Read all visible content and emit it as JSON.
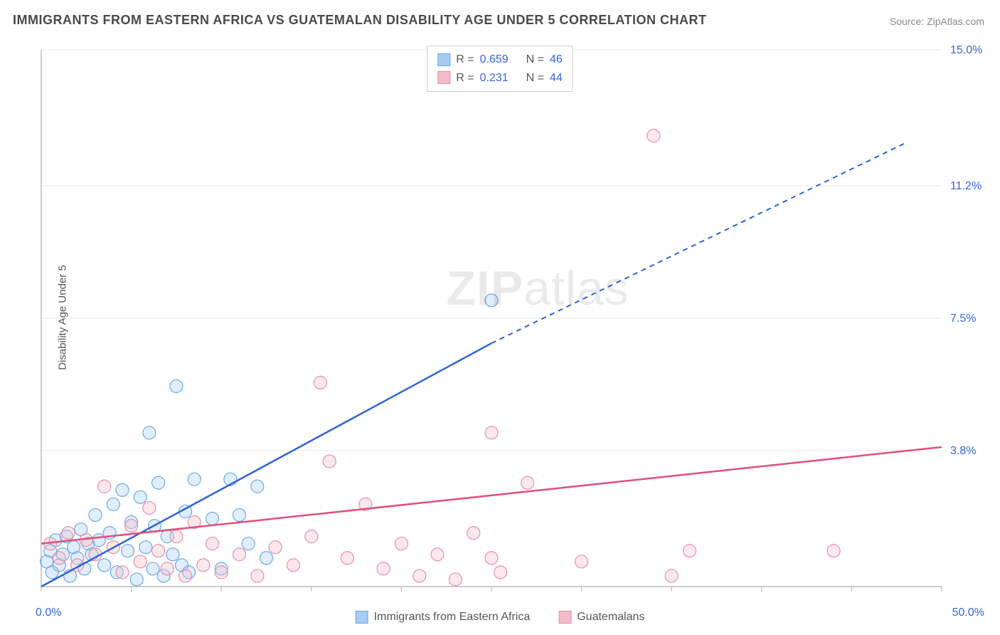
{
  "title": "IMMIGRANTS FROM EASTERN AFRICA VS GUATEMALAN DISABILITY AGE UNDER 5 CORRELATION CHART",
  "source_prefix": "Source: ",
  "source_name": "ZipAtlas.com",
  "y_axis_label": "Disability Age Under 5",
  "watermark_bold": "ZIP",
  "watermark_rest": "atlas",
  "chart": {
    "type": "scatter",
    "xlim": [
      0,
      50
    ],
    "ylim": [
      0,
      15
    ],
    "x_start_label": "0.0%",
    "x_end_label": "50.0%",
    "y_tick_values": [
      3.8,
      7.5,
      11.2,
      15.0
    ],
    "y_tick_labels": [
      "3.8%",
      "7.5%",
      "11.2%",
      "15.0%"
    ],
    "x_tick_values": [
      0,
      5,
      10,
      15,
      20,
      25,
      30,
      35,
      40,
      45,
      50
    ],
    "background_color": "#ffffff",
    "grid_color": "#e8e8e8",
    "axis_color": "#bbbbbb",
    "marker_radius": 9,
    "marker_stroke_width": 1.2,
    "marker_fill_opacity": 0.35,
    "series": [
      {
        "key": "eastern_africa",
        "label": "Immigrants from Eastern Africa",
        "color_stroke": "#6fa8e8",
        "color_fill": "#a7cbf2",
        "trend_color": "#2f63d6",
        "trend_start": [
          0,
          0.0
        ],
        "trend_solid_end": [
          25,
          6.8
        ],
        "trend_dash_end": [
          48,
          12.4
        ],
        "R_label": "R =",
        "R": "0.659",
        "N_label": "N =",
        "N": "46",
        "points": [
          [
            0.3,
            0.7
          ],
          [
            0.5,
            1.0
          ],
          [
            0.6,
            0.4
          ],
          [
            0.8,
            1.3
          ],
          [
            1.0,
            0.6
          ],
          [
            1.2,
            0.9
          ],
          [
            1.4,
            1.4
          ],
          [
            1.6,
            0.3
          ],
          [
            1.8,
            1.1
          ],
          [
            2.0,
            0.8
          ],
          [
            2.2,
            1.6
          ],
          [
            2.4,
            0.5
          ],
          [
            2.6,
            1.2
          ],
          [
            2.8,
            0.9
          ],
          [
            3.0,
            2.0
          ],
          [
            3.2,
            1.3
          ],
          [
            3.5,
            0.6
          ],
          [
            3.8,
            1.5
          ],
          [
            4.0,
            2.3
          ],
          [
            4.2,
            0.4
          ],
          [
            4.5,
            2.7
          ],
          [
            4.8,
            1.0
          ],
          [
            5.0,
            1.8
          ],
          [
            5.3,
            0.2
          ],
          [
            5.5,
            2.5
          ],
          [
            5.8,
            1.1
          ],
          [
            6.0,
            4.3
          ],
          [
            6.2,
            0.5
          ],
          [
            6.5,
            2.9
          ],
          [
            6.8,
            0.3
          ],
          [
            7.0,
            1.4
          ],
          [
            7.3,
            0.9
          ],
          [
            7.5,
            5.6
          ],
          [
            7.8,
            0.6
          ],
          [
            8.0,
            2.1
          ],
          [
            8.2,
            0.4
          ],
          [
            8.5,
            3.0
          ],
          [
            9.5,
            1.9
          ],
          [
            10.0,
            0.5
          ],
          [
            10.5,
            3.0
          ],
          [
            11.0,
            2.0
          ],
          [
            11.5,
            1.2
          ],
          [
            12.0,
            2.8
          ],
          [
            12.5,
            0.8
          ],
          [
            25.0,
            8.0
          ],
          [
            6.3,
            1.7
          ]
        ]
      },
      {
        "key": "guatemalans",
        "label": "Guatemalans",
        "color_stroke": "#e88fa8",
        "color_fill": "#f3bcc9",
        "trend_color": "#e04f7a",
        "trend_start": [
          0,
          1.2
        ],
        "trend_solid_end": [
          50,
          3.9
        ],
        "trend_dash_end": null,
        "R_label": "R =",
        "R": "0.231",
        "N_label": "N =",
        "N": "44",
        "points": [
          [
            0.5,
            1.2
          ],
          [
            1.0,
            0.8
          ],
          [
            1.5,
            1.5
          ],
          [
            2.0,
            0.6
          ],
          [
            2.5,
            1.3
          ],
          [
            3.0,
            0.9
          ],
          [
            3.5,
            2.8
          ],
          [
            4.0,
            1.1
          ],
          [
            4.5,
            0.4
          ],
          [
            5.0,
            1.7
          ],
          [
            5.5,
            0.7
          ],
          [
            6.0,
            2.2
          ],
          [
            6.5,
            1.0
          ],
          [
            7.0,
            0.5
          ],
          [
            7.5,
            1.4
          ],
          [
            8.0,
            0.3
          ],
          [
            8.5,
            1.8
          ],
          [
            9.0,
            0.6
          ],
          [
            9.5,
            1.2
          ],
          [
            10.0,
            0.4
          ],
          [
            11.0,
            0.9
          ],
          [
            12.0,
            0.3
          ],
          [
            13.0,
            1.1
          ],
          [
            14.0,
            0.6
          ],
          [
            15.0,
            1.4
          ],
          [
            15.5,
            5.7
          ],
          [
            16.0,
            3.5
          ],
          [
            17.0,
            0.8
          ],
          [
            18.0,
            2.3
          ],
          [
            19.0,
            0.5
          ],
          [
            20.0,
            1.2
          ],
          [
            21.0,
            0.3
          ],
          [
            22.0,
            0.9
          ],
          [
            23.0,
            0.2
          ],
          [
            24.0,
            1.5
          ],
          [
            25.0,
            4.3
          ],
          [
            25.5,
            0.4
          ],
          [
            27.0,
            2.9
          ],
          [
            30.0,
            0.7
          ],
          [
            34.0,
            12.6
          ],
          [
            35.0,
            0.3
          ],
          [
            36.0,
            1.0
          ],
          [
            44.0,
            1.0
          ],
          [
            25.0,
            0.8
          ]
        ]
      }
    ]
  }
}
